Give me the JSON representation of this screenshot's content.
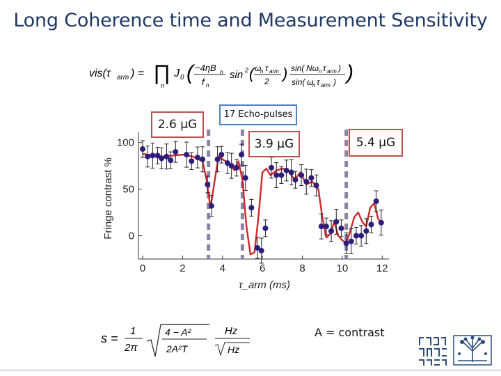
{
  "slide": {
    "title": "Long Coherence time and Measurement Sensitivity",
    "labels": {
      "field_a": "2.6 μG",
      "field_b": "3.9 μG",
      "field_c": "5.4 μG",
      "echo": "17 Echo-pulses",
      "contrast_note": "A = contrast"
    },
    "equations": {
      "top": "vis(τ_arm) = ∏_n J₀( (−4ηB_n / f_n) sin²(ω_n τ_arm / 2) · sin(Nω_n τ_arm) / sin(ω_n τ_arm) )",
      "bottom": "s = (1/2π) √((4 − A²)/(2A²T)) · Hz/√Hz"
    }
  },
  "chart_data": {
    "type": "scatter",
    "xlabel": "τ_arm (ms)",
    "ylabel": "Fringe contrast %",
    "xlim": [
      0,
      12.2
    ],
    "ylim": [
      -25,
      105
    ],
    "xticks": [
      0,
      2,
      4,
      6,
      8,
      10,
      12
    ],
    "yticks": [
      0,
      50,
      100
    ],
    "grid": false,
    "dashed_markers_x": [
      3.3,
      5.0,
      10.2
    ],
    "series": [
      {
        "kind": "points",
        "color": "#2e1d7a",
        "x": [
          0.0,
          0.25,
          0.5,
          0.75,
          0.95,
          1.2,
          1.4,
          1.65,
          2.2,
          2.45,
          2.75,
          3.0,
          3.25,
          3.45,
          3.75,
          3.95,
          4.25,
          4.45,
          4.7,
          4.95,
          5.15,
          5.45,
          5.75,
          5.95,
          6.15,
          6.45,
          6.7,
          6.95,
          7.2,
          7.45,
          7.65,
          7.95,
          8.2,
          8.45,
          8.7,
          8.95,
          9.2,
          9.45,
          9.7,
          9.95,
          10.2,
          10.45,
          10.7,
          10.95,
          11.2,
          11.45,
          11.7,
          11.95
        ],
        "y": [
          93,
          85,
          86,
          86,
          83,
          85,
          81,
          90,
          87,
          80,
          84,
          82,
          55,
          32,
          82,
          87,
          78,
          75,
          73,
          87,
          62,
          30,
          -13,
          -16,
          8,
          73,
          65,
          65,
          70,
          68,
          60,
          65,
          58,
          62,
          54,
          10,
          10,
          5,
          15,
          8,
          -8,
          -6,
          0,
          0,
          5,
          12,
          37,
          14
        ]
      },
      {
        "kind": "fit",
        "color": "#d1272b",
        "x": [
          0.0,
          0.5,
          1.0,
          1.5,
          2.0,
          2.5,
          3.0,
          3.2,
          3.4,
          3.6,
          3.8,
          4.0,
          4.3,
          4.6,
          4.8,
          5.0,
          5.2,
          5.4,
          5.6,
          5.8,
          6.0,
          6.2,
          6.4,
          6.7,
          7.0,
          7.3,
          7.6,
          7.9,
          8.2,
          8.5,
          8.8,
          9.0,
          9.2,
          9.4,
          9.6,
          9.8,
          10.0,
          10.2,
          10.4,
          10.6,
          10.8,
          11.0,
          11.2,
          11.4,
          11.6,
          11.8,
          12.0
        ],
        "y": [
          88,
          86,
          85,
          86,
          87,
          85,
          80,
          60,
          30,
          58,
          85,
          82,
          78,
          70,
          80,
          60,
          10,
          -20,
          -18,
          20,
          68,
          72,
          65,
          70,
          72,
          70,
          60,
          68,
          55,
          58,
          50,
          20,
          -2,
          2,
          15,
          0,
          -5,
          -8,
          5,
          20,
          25,
          15,
          10,
          30,
          35,
          18,
          12
        ]
      }
    ]
  },
  "logo": {
    "icon": "university-seal-icon"
  }
}
